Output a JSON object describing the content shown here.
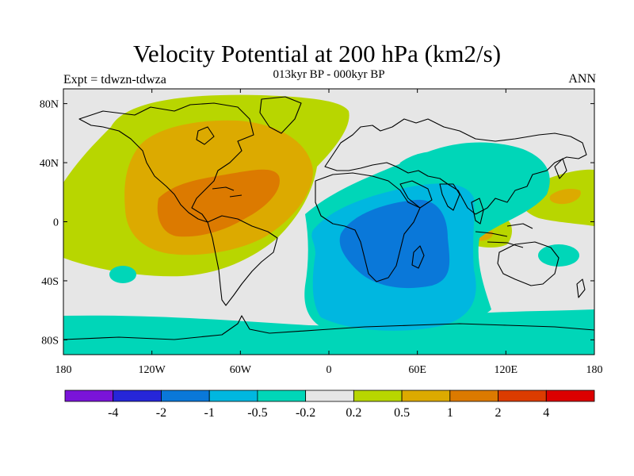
{
  "title": "Velocity Potential at 200 hPa (km2/s)",
  "subtitle": "013kyr BP - 000kyr BP",
  "left_label": "Expt = tdwzn-tdwza",
  "right_label": "ANN",
  "map": {
    "projection": "cylindrical-equidistant",
    "lon_range": [
      -180,
      180
    ],
    "lat_range": [
      -90,
      90
    ],
    "lon_ticks": [
      {
        "value": -180,
        "label": "180"
      },
      {
        "value": -120,
        "label": "120W"
      },
      {
        "value": -60,
        "label": "60W"
      },
      {
        "value": 0,
        "label": "0"
      },
      {
        "value": 60,
        "label": "60E"
      },
      {
        "value": 120,
        "label": "120E"
      },
      {
        "value": 180,
        "label": "180"
      }
    ],
    "lat_ticks": [
      {
        "value": 80,
        "label": "80N"
      },
      {
        "value": 40,
        "label": "40N"
      },
      {
        "value": 0,
        "label": "0"
      },
      {
        "value": -40,
        "label": "40S"
      },
      {
        "value": -80,
        "label": "80S"
      }
    ],
    "background_color": "#e6e6e6"
  },
  "colorbar": {
    "colors": [
      "#7a14d9",
      "#2626d9",
      "#0a78d9",
      "#00b7e0",
      "#00d6b8",
      "#e6e6e6",
      "#b8d600",
      "#dcaa00",
      "#dc7a00",
      "#dc3c00",
      "#dc0000"
    ],
    "labels": [
      "-4",
      "-2",
      "-1",
      "-0.5",
      "-0.2",
      "0.2",
      "0.5",
      "1",
      "2",
      "4"
    ]
  }
}
